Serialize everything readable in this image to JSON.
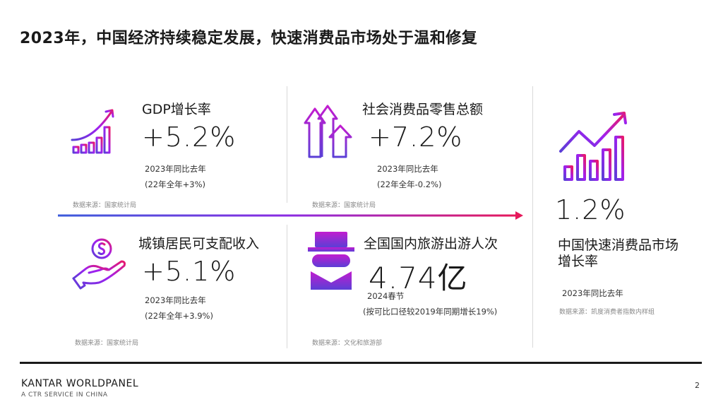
{
  "page": {
    "title": "2023年，中国经济持续稳定发展，快速消费品市场处于温和修复",
    "page_number": "2"
  },
  "metrics": [
    {
      "label": "GDP增长率",
      "value": "+5.2%",
      "note1": "2023年同比去年",
      "note2": "(22年全年+3%)",
      "source": "数据来源：国家统计局",
      "icon": "rising-bar-chart-icon"
    },
    {
      "label": "社会消费品零售总额",
      "value": "+7.2%",
      "note1": "2023年同比去年",
      "note2": "(22年全年-0.2%)",
      "source": "数据来源：国家统计局",
      "icon": "up-arrows-icon"
    },
    {
      "label": "城镇居民可支配收入",
      "value": "+5.1%",
      "note1": "2023年同比去年",
      "note2": "(22年全年+3.9%)",
      "source": "数据来源：国家统计局",
      "icon": "hand-coin-icon"
    },
    {
      "label": "全国国内旅游出游人次",
      "value": "4.74亿",
      "note1": "2024春节",
      "note2": "(按可比口径较2019年同期增长19%)",
      "source": "数据来源：文化和旅游部",
      "icon": "traveler-icon"
    }
  ],
  "highlight": {
    "value": "1.2%",
    "label_line1": "中国快速消费品市场",
    "label_line2": "增长率",
    "note": "2023年同比去年",
    "source": "数据来源：凯度消费者指数内样组",
    "icon": "growth-chart-icon"
  },
  "footer": {
    "brand": "KANTAR WORLDPANEL",
    "tagline": "A CTR SERVICE IN CHINA"
  },
  "colors": {
    "gradient_start": "#3b5bdb",
    "gradient_mid": "#8a2be2",
    "gradient_end": "#e6195b"
  }
}
